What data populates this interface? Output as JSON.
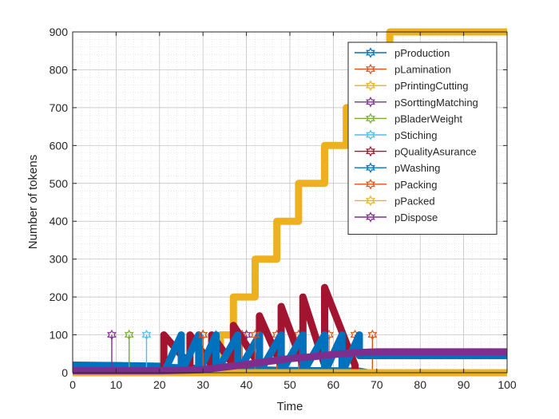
{
  "chart_data": {
    "type": "line",
    "xlabel": "Time",
    "ylabel": "Number of tokens",
    "xlim": [
      0,
      100
    ],
    "ylim": [
      0,
      900
    ],
    "xticks": [
      0,
      10,
      20,
      30,
      40,
      50,
      60,
      70,
      80,
      90,
      100
    ],
    "yticks": [
      0,
      100,
      200,
      300,
      400,
      500,
      600,
      700,
      800,
      900
    ],
    "grid": "major and minor (dotted)",
    "legend_position": "top-right",
    "series": [
      {
        "name": "pProduction",
        "color": "#0072BD",
        "marker": "hexagram",
        "points": [
          [
            0,
            20
          ],
          [
            10,
            19
          ],
          [
            20,
            17
          ],
          [
            22,
            14
          ],
          [
            30,
            11
          ],
          [
            40,
            8
          ],
          [
            50,
            6
          ],
          [
            60,
            5
          ],
          [
            66,
            4
          ],
          [
            68,
            0
          ],
          [
            100,
            0
          ]
        ],
        "spikes": []
      },
      {
        "name": "pLamination",
        "color": "#D95319",
        "marker": "hexagram",
        "points": [
          [
            0,
            0
          ],
          [
            100,
            0
          ]
        ],
        "spikes": [
          [
            39,
            0,
            100
          ],
          [
            47,
            0,
            100
          ],
          [
            52,
            0,
            100
          ],
          [
            59,
            0,
            100
          ],
          [
            65,
            0,
            100
          ],
          [
            69,
            0,
            100
          ]
        ]
      },
      {
        "name": "pPrintingCutting",
        "color": "#EDB120",
        "marker": "hexagram",
        "points": [
          [
            0,
            0
          ],
          [
            30,
            0
          ],
          [
            34,
            0
          ],
          [
            34,
            100
          ],
          [
            37,
            100
          ],
          [
            37,
            200
          ],
          [
            42,
            200
          ],
          [
            42,
            300
          ],
          [
            47,
            300
          ],
          [
            47,
            400
          ],
          [
            52,
            400
          ],
          [
            52,
            500
          ],
          [
            58,
            500
          ],
          [
            58,
            600
          ],
          [
            63,
            600
          ],
          [
            63,
            700
          ],
          [
            68,
            700
          ],
          [
            68,
            800
          ],
          [
            73,
            800
          ],
          [
            73,
            900
          ],
          [
            100,
            900
          ]
        ],
        "spikes": []
      },
      {
        "name": "pSorttingMatching",
        "color": "#7E2F8E",
        "marker": "hexagram",
        "points": [
          [
            0,
            0
          ],
          [
            100,
            0
          ]
        ],
        "spikes": [
          [
            9,
            0,
            100
          ],
          [
            40,
            0,
            100
          ]
        ]
      },
      {
        "name": "pBladerWeight",
        "color": "#77AC30",
        "marker": "hexagram",
        "points": [
          [
            0,
            0
          ],
          [
            100,
            0
          ]
        ],
        "spikes": [
          [
            13,
            0,
            100
          ],
          [
            30,
            0,
            100
          ]
        ]
      },
      {
        "name": "pStiching",
        "color": "#4DBEEE",
        "marker": "hexagram",
        "points": [
          [
            0,
            0
          ],
          [
            100,
            0
          ]
        ],
        "spikes": [
          [
            17,
            0,
            100
          ],
          [
            33,
            0,
            100
          ]
        ]
      },
      {
        "name": "pQualityAsurance",
        "color": "#A2142F",
        "marker": "hexagram",
        "points": [
          [
            0,
            0
          ],
          [
            21,
            0
          ],
          [
            21,
            100
          ],
          [
            27,
            20
          ],
          [
            27,
            100
          ],
          [
            32,
            20
          ],
          [
            32,
            100
          ],
          [
            37,
            20
          ],
          [
            37,
            125
          ],
          [
            43,
            20
          ],
          [
            43,
            150
          ],
          [
            48,
            20
          ],
          [
            48,
            175
          ],
          [
            53,
            20
          ],
          [
            53,
            200
          ],
          [
            58,
            20
          ],
          [
            58,
            225
          ],
          [
            65,
            20
          ],
          [
            65,
            0
          ],
          [
            100,
            0
          ]
        ],
        "spikes": []
      },
      {
        "name": "pWashing",
        "color": "#0072BD",
        "marker": "hexagram",
        "points": [
          [
            0,
            0
          ],
          [
            21,
            0
          ],
          [
            25,
            100
          ],
          [
            25,
            0
          ],
          [
            29,
            100
          ],
          [
            29,
            0
          ],
          [
            33,
            100
          ],
          [
            33,
            0
          ],
          [
            38,
            100
          ],
          [
            38,
            0
          ],
          [
            43,
            100
          ],
          [
            43,
            0
          ],
          [
            48,
            100
          ],
          [
            48,
            0
          ],
          [
            53,
            100
          ],
          [
            53,
            0
          ],
          [
            58,
            100
          ],
          [
            58,
            0
          ],
          [
            62,
            100
          ],
          [
            62,
            0
          ],
          [
            66,
            100
          ],
          [
            66,
            45
          ],
          [
            100,
            45
          ]
        ],
        "spikes": []
      },
      {
        "name": "pPacking",
        "color": "#D95319",
        "marker": "hexagram",
        "points": [
          [
            0,
            0
          ],
          [
            100,
            0
          ]
        ],
        "spikes": [
          [
            30,
            0,
            100
          ],
          [
            42,
            0,
            100
          ]
        ]
      },
      {
        "name": "pPacked",
        "color": "#EDB120",
        "marker": "hexagram",
        "points": [
          [
            0,
            0
          ],
          [
            32,
            0
          ],
          [
            100,
            0
          ]
        ],
        "spikes": []
      },
      {
        "name": "pDispose",
        "color": "#7E2F8E",
        "marker": "hexagram",
        "points": [
          [
            0,
            5
          ],
          [
            20,
            5
          ],
          [
            30,
            8
          ],
          [
            35,
            15
          ],
          [
            40,
            22
          ],
          [
            45,
            30
          ],
          [
            50,
            37
          ],
          [
            55,
            42
          ],
          [
            60,
            48
          ],
          [
            65,
            53
          ],
          [
            70,
            55
          ],
          [
            100,
            55
          ]
        ],
        "spikes": []
      }
    ]
  }
}
